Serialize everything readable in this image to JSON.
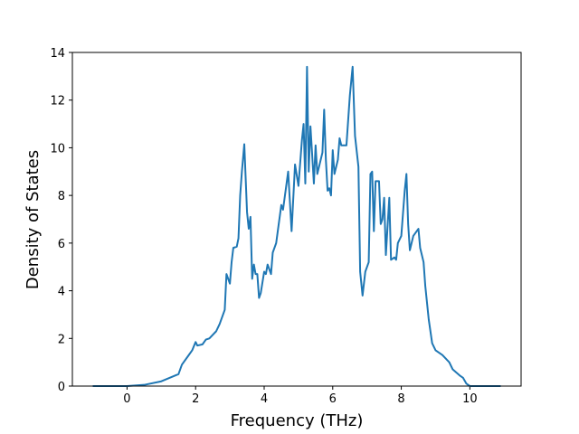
{
  "chart_data": {
    "type": "line",
    "xlabel": "Frequency (THz)",
    "ylabel": "Density of States",
    "color": "#1f77b4",
    "x": [
      -1,
      0,
      0.5,
      1,
      1.5,
      1.6,
      1.8,
      1.9,
      2.0,
      2.05,
      2.2,
      2.3,
      2.4,
      2.6,
      2.7,
      2.8,
      2.85,
      2.9,
      3.0,
      3.05,
      3.1,
      3.2,
      3.25,
      3.3,
      3.35,
      3.42,
      3.5,
      3.55,
      3.6,
      3.65,
      3.7,
      3.75,
      3.8,
      3.85,
      3.9,
      4.0,
      4.05,
      4.1,
      4.2,
      4.25,
      4.35,
      4.5,
      4.55,
      4.7,
      4.8,
      4.9,
      5.0,
      5.1,
      5.15,
      5.2,
      5.25,
      5.3,
      5.35,
      5.45,
      5.5,
      5.55,
      5.6,
      5.7,
      5.75,
      5.8,
      5.85,
      5.9,
      5.95,
      6.0,
      6.05,
      6.15,
      6.2,
      6.25,
      6.4,
      6.5,
      6.58,
      6.65,
      6.75,
      6.8,
      6.87,
      6.95,
      7.05,
      7.1,
      7.15,
      7.2,
      7.25,
      7.35,
      7.4,
      7.45,
      7.5,
      7.55,
      7.65,
      7.7,
      7.8,
      7.85,
      7.9,
      8.0,
      8.1,
      8.15,
      8.2,
      8.25,
      8.35,
      8.5,
      8.55,
      8.65,
      8.7,
      8.8,
      8.9,
      9.0,
      9.2,
      9.4,
      9.5,
      9.7,
      9.8,
      9.9,
      10.0,
      10.9
    ],
    "values": [
      0,
      0,
      0.05,
      0.2,
      0.5,
      0.9,
      1.3,
      1.5,
      1.85,
      1.7,
      1.75,
      1.95,
      2.0,
      2.3,
      2.6,
      3.0,
      3.2,
      4.7,
      4.3,
      5.2,
      5.8,
      5.85,
      6.2,
      8.0,
      9.0,
      10.15,
      7.3,
      6.6,
      7.1,
      4.5,
      5.1,
      4.7,
      4.7,
      3.7,
      3.9,
      4.8,
      4.7,
      5.1,
      4.7,
      5.6,
      6.0,
      7.6,
      7.4,
      9.0,
      6.5,
      9.3,
      8.4,
      10.3,
      11.0,
      8.5,
      13.4,
      9.0,
      10.9,
      8.5,
      10.1,
      8.9,
      9.2,
      9.8,
      11.6,
      9.5,
      8.2,
      8.3,
      8.0,
      9.9,
      8.9,
      9.5,
      10.4,
      10.1,
      10.1,
      12.2,
      13.4,
      10.5,
      9.2,
      4.8,
      3.8,
      4.8,
      5.2,
      8.9,
      9.0,
      6.5,
      8.6,
      8.6,
      6.8,
      7.0,
      7.9,
      5.5,
      7.9,
      5.3,
      5.4,
      5.3,
      6.0,
      6.3,
      8.2,
      8.9,
      6.8,
      5.7,
      6.3,
      6.6,
      5.8,
      5.2,
      4.2,
      2.8,
      1.8,
      1.5,
      1.3,
      1.0,
      0.7,
      0.45,
      0.35,
      0.1,
      0,
      0
    ],
    "xlim": [
      -1.595,
      11.495
    ],
    "xticks": [
      0,
      2,
      4,
      6,
      8,
      10
    ],
    "ylim": [
      0,
      14
    ],
    "yticks": [
      0,
      2,
      4,
      6,
      8,
      10,
      12,
      14
    ]
  }
}
